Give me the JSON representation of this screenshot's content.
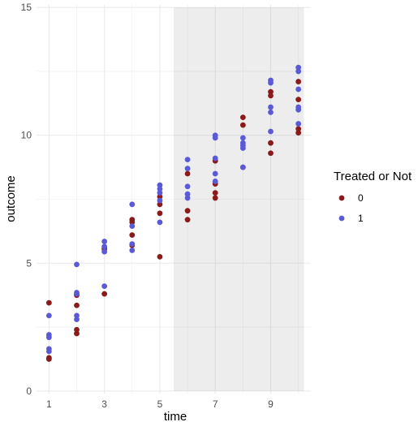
{
  "chart_data": {
    "type": "scatter",
    "title": "",
    "xlabel": "time",
    "ylabel": "outcome",
    "xlim": [
      0.55,
      10.45
    ],
    "ylim": [
      -0.1,
      15.1
    ],
    "x_ticks": [
      1,
      3,
      5,
      7,
      9
    ],
    "x_tick_labels": [
      "1",
      "3",
      "5",
      "7",
      "9"
    ],
    "y_ticks": [
      0,
      5,
      10,
      15
    ],
    "y_tick_labels": [
      "0",
      "5",
      "10",
      "15"
    ],
    "grid": true,
    "shaded_region": {
      "x_from": 5.5,
      "x_to": 10.2,
      "y_from": 0,
      "y_to": 15
    },
    "legend": {
      "title": "Treated or Not",
      "position": "right",
      "entries": [
        {
          "label": "0",
          "color": "#8B1A1A"
        },
        {
          "label": "1",
          "color": "#5A5AD6"
        }
      ]
    },
    "series": [
      {
        "name": "0",
        "color": "#8B1A1A",
        "points": [
          [
            1,
            3.45
          ],
          [
            1,
            1.3
          ],
          [
            1,
            1.25
          ],
          [
            2,
            3.75
          ],
          [
            2,
            3.35
          ],
          [
            2,
            2.4
          ],
          [
            2,
            2.25
          ],
          [
            3,
            5.55
          ],
          [
            3,
            5.6
          ],
          [
            3,
            3.8
          ],
          [
            4,
            6.7
          ],
          [
            4,
            6.6
          ],
          [
            4,
            6.1
          ],
          [
            4,
            5.7
          ],
          [
            5,
            7.6
          ],
          [
            5,
            7.3
          ],
          [
            5,
            6.95
          ],
          [
            5,
            5.25
          ],
          [
            6,
            8.5
          ],
          [
            6,
            7.05
          ],
          [
            6,
            6.7
          ],
          [
            7,
            9.0
          ],
          [
            7,
            8.1
          ],
          [
            7,
            7.75
          ],
          [
            7,
            7.55
          ],
          [
            8,
            10.7
          ],
          [
            8,
            10.4
          ],
          [
            8,
            8.75
          ],
          [
            9,
            11.7
          ],
          [
            9,
            11.55
          ],
          [
            9,
            9.7
          ],
          [
            9,
            9.3
          ],
          [
            10,
            12.1
          ],
          [
            10,
            11.4
          ],
          [
            10,
            10.25
          ],
          [
            10,
            10.1
          ]
        ]
      },
      {
        "name": "1",
        "color": "#5A5AD6",
        "points": [
          [
            1,
            2.95
          ],
          [
            1,
            2.2
          ],
          [
            1,
            2.1
          ],
          [
            1,
            1.65
          ],
          [
            1,
            1.55
          ],
          [
            2,
            4.95
          ],
          [
            2,
            3.85
          ],
          [
            2,
            3.8
          ],
          [
            2,
            2.95
          ],
          [
            2,
            2.8
          ],
          [
            3,
            5.85
          ],
          [
            3,
            5.65
          ],
          [
            3,
            5.45
          ],
          [
            3,
            4.1
          ],
          [
            4,
            7.3
          ],
          [
            4,
            6.45
          ],
          [
            4,
            5.75
          ],
          [
            4,
            5.5
          ],
          [
            5,
            8.05
          ],
          [
            5,
            7.9
          ],
          [
            5,
            7.75
          ],
          [
            5,
            7.45
          ],
          [
            5,
            6.6
          ],
          [
            6,
            9.05
          ],
          [
            6,
            8.7
          ],
          [
            6,
            8.0
          ],
          [
            6,
            7.7
          ],
          [
            6,
            7.55
          ],
          [
            7,
            10.0
          ],
          [
            7,
            9.9
          ],
          [
            7,
            9.1
          ],
          [
            7,
            8.5
          ],
          [
            7,
            8.2
          ],
          [
            8,
            9.9
          ],
          [
            8,
            9.7
          ],
          [
            8,
            9.6
          ],
          [
            8,
            9.5
          ],
          [
            8,
            8.75
          ],
          [
            9,
            12.15
          ],
          [
            9,
            12.05
          ],
          [
            9,
            11.1
          ],
          [
            9,
            10.9
          ],
          [
            9,
            10.15
          ],
          [
            10,
            12.65
          ],
          [
            10,
            12.5
          ],
          [
            10,
            11.8
          ],
          [
            10,
            11.1
          ],
          [
            10,
            11.0
          ],
          [
            10,
            10.45
          ]
        ]
      }
    ]
  }
}
